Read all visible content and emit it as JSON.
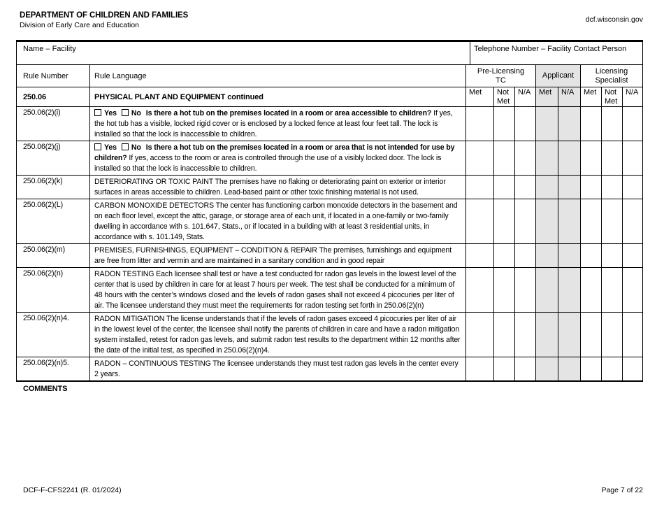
{
  "header": {
    "department": "DEPARTMENT OF CHILDREN AND FAMILIES",
    "division": "Division of Early Care and Education",
    "website": "dcf.wisconsin.gov"
  },
  "fields": {
    "name_label": "Name – Facility",
    "phone_label": "Telephone Number – Facility Contact Person",
    "name_value": "",
    "phone_value": ""
  },
  "table": {
    "col_rule_number": "Rule Number",
    "col_rule_language": "Rule Language",
    "group_tc": "Pre-Licensing\nTC",
    "group_applicant": "Applicant",
    "group_specialist": "Licensing\nSpecialist",
    "subcols": [
      "Met",
      "Not Met",
      "N/A",
      "Met",
      "N/A",
      "Met",
      "Not Met",
      "N/A"
    ],
    "section_rule": "250.06",
    "section_title": "PHYSICAL PLANT AND EQUIPMENT continued",
    "checkbox_yes": "Yes",
    "checkbox_no": "No",
    "rows": [
      {
        "rule": "250.06(2)(i)",
        "checkboxes": true,
        "question": "Is there a hot tub on the premises located in a room or area accessible to children?",
        "text": "If yes, the hot tub has a visible, locked rigid cover or is enclosed by a locked fence at least four feet tall. The lock is installed so that the lock is inaccessible to children."
      },
      {
        "rule": "250.06(2)(j)",
        "checkboxes": true,
        "question": "Is there a hot tub on the premises located in a room or area that is not intended for use by children?",
        "text": "If yes, access to the room or area is controlled through the use of a visibly locked door. The lock is installed so that the lock is inaccessible to children."
      },
      {
        "rule": "250.06(2)(k)",
        "checkboxes": false,
        "question": "",
        "text": "DETERIORATING OR TOXIC PAINT The premises have no flaking or deteriorating paint on exterior or interior surfaces in areas accessible to children. Lead-based paint or other toxic finishing material is not used."
      },
      {
        "rule": "250.06(2)(L)",
        "checkboxes": false,
        "question": "",
        "text": "CARBON MONOXIDE DETECTORS The center has functioning carbon monoxide detectors in the basement and on each floor level, except the attic, garage, or storage area of each unit, if located in a one-family or two-family dwelling in accordance with s. 101.647, Stats., or if located in a building with at least 3 residential units, in accordance with s. 101.149, Stats."
      },
      {
        "rule": "250.06(2)(m)",
        "checkboxes": false,
        "question": "",
        "text": "PREMISES, FURNISHINGS, EQUIPMENT – CONDITION & REPAIR The premises, furnishings and equipment are free from litter and vermin and are maintained in a sanitary condition and in good repair"
      },
      {
        "rule": "250.06(2)(n)",
        "checkboxes": false,
        "question": "",
        "text": "RADON TESTING Each licensee shall test or have a test conducted for radon gas levels in the lowest level of the center that is used by children in care for at least 7 hours per week. The test shall be conducted for a minimum of 48 hours with the center’s windows closed and the levels of radon gases shall not exceed 4 picocuries per liter of air. The licensee understand they must meet the requirements for radon testing set forth in 250.06(2)(n)"
      },
      {
        "rule": "250.06(2)(n)4.",
        "checkboxes": false,
        "question": "",
        "text": "RADON MITIGATION The license understands that if the levels of radon gases exceed 4 picocuries per liter of air in the lowest level of the center, the licensee shall notify the parents of children in care and have a radon mitigation system installed, retest for radon gas levels, and submit radon test results to the department within 12 months after the date of the initial test, as specified in 250.06(2)(n)4."
      },
      {
        "rule": "250.06(2)(n)5.",
        "checkboxes": false,
        "question": "",
        "text": "RADON – CONTINUOUS TESTING The licensee understands they must test radon gas levels in the center every 2 years."
      }
    ]
  },
  "comments_label": "COMMENTS",
  "footer": {
    "form_id": "DCF-F-CFS2241 (R. 01/2024)",
    "page": "Page 7 of 22"
  },
  "colors": {
    "shaded_cell": "#e4e4e4",
    "border": "#000000"
  }
}
